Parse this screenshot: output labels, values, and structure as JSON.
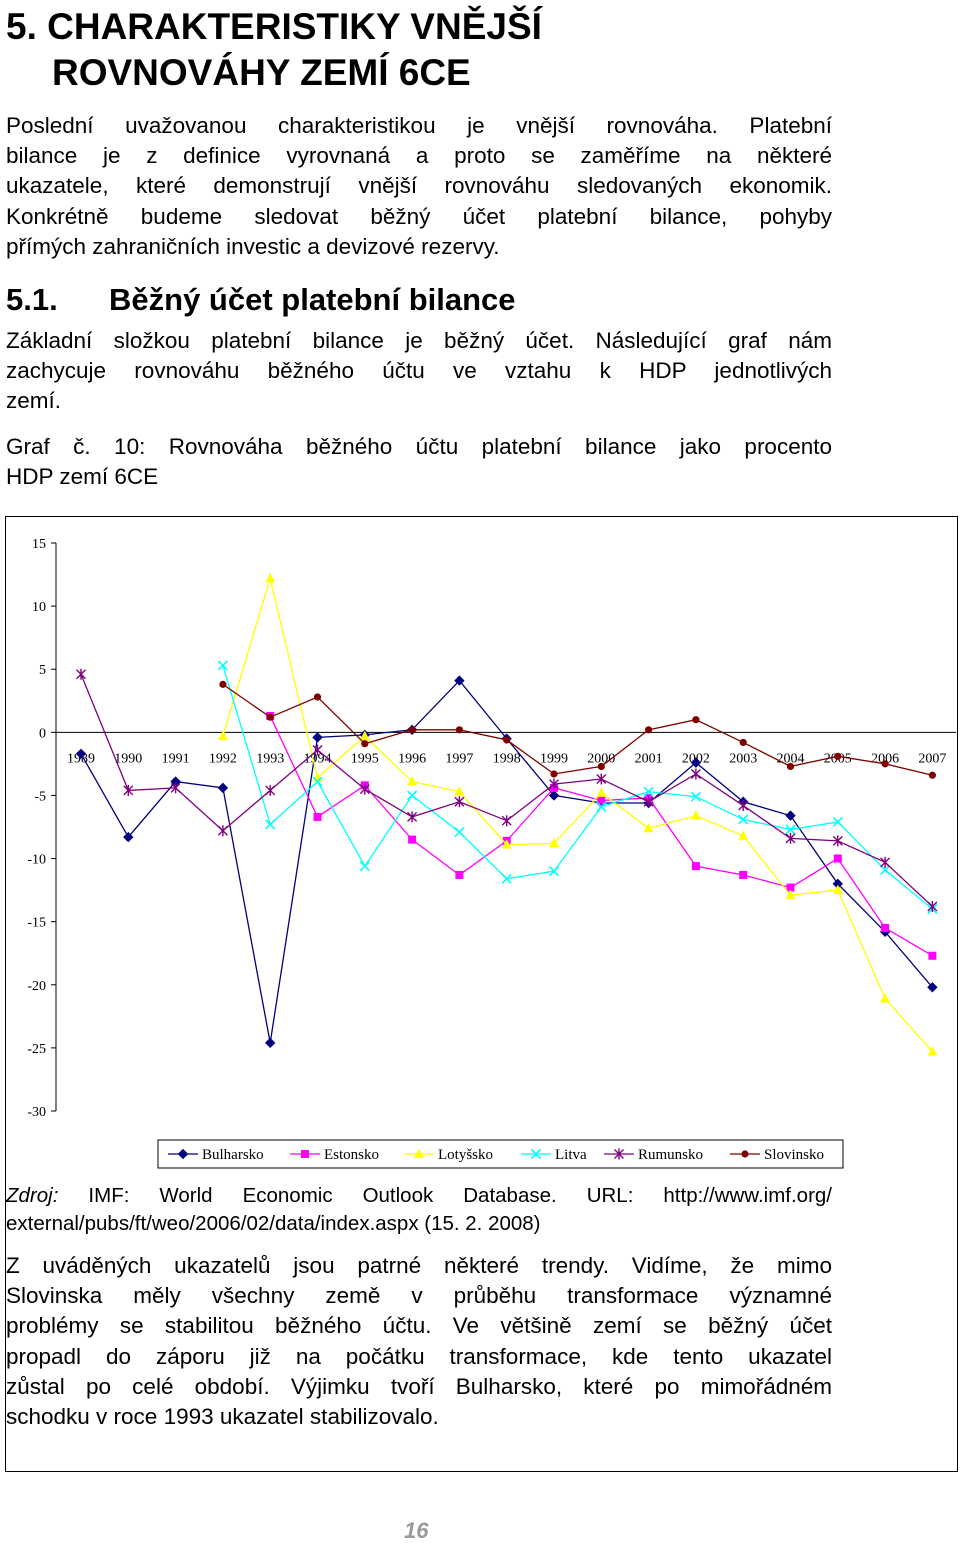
{
  "heading": {
    "line1": "5. CHARAKTERISTIKY VNĚJŠÍ",
    "line2": "ROVNOVÁHY ZEMÍ 6CE"
  },
  "intro_lines": [
    "Poslední uvažovanou charakteristikou je vnější rovnováha. Platební",
    "bilance je z definice vyrovnaná a proto se zaměříme na některé",
    "ukazatele, které demonstrují vnější rovnováhu sledovaných ekonomik.",
    "Konkrétně budeme sledovat běžný účet platební bilance, pohyby",
    "přímých zahraničních investic a devizové rezervy."
  ],
  "section": {
    "number": "5.1.",
    "title": "Běžný účet platební bilance"
  },
  "section_lines": [
    "Základní složkou platební bilance je běžný účet. Následující graf nám",
    "zachycuje rovnováhu běžného účtu ve vztahu k HDP jednotlivých",
    "zemí."
  ],
  "caption_lines": [
    "Graf č. 10: Rovnováha běžného účtu platební bilance jako procento",
    "HDP zemí 6CE"
  ],
  "source_lines": [
    "Zdroj: IMF: World Economic Outlook Database. URL: http://www.imf.org/",
    "external/pubs/ft/weo/2006/02/data/index.aspx (15. 2. 2008)"
  ],
  "conclusion_lines": [
    "Z uváděných ukazatelů jsou patrné některé trendy. Vidíme, že mimo",
    "Slovinska měly všechny země v průběhu transformace významné",
    "problémy se stabilitou běžného účtu. Ve většině zemí se běžný účet",
    "propadl do záporu již na počátku transformace, kde tento ukazatel",
    "zůstal po celé období. Výjimku tvoří Bulharsko, které po mimořádném",
    "schodku v roce 1993 ukazatel stabilizovalo."
  ],
  "page_number": "16",
  "chart_data": {
    "type": "line",
    "title": "",
    "xlabel": "",
    "ylabel": "",
    "ylim": [
      -30,
      15
    ],
    "yticks": [
      15,
      10,
      5,
      0,
      -5,
      -10,
      -15,
      -20,
      -25,
      -30
    ],
    "categories": [
      "1989",
      "1990",
      "1991",
      "1992",
      "1993",
      "1994",
      "1995",
      "1996",
      "1997",
      "1998",
      "1999",
      "2000",
      "2001",
      "2002",
      "2003",
      "2004",
      "2005",
      "2006",
      "2007"
    ],
    "grid": false,
    "legend_position": "bottom",
    "series": [
      {
        "name": "Bulharsko",
        "color": "#000080",
        "marker": "diamond",
        "values": [
          -1.7,
          -8.3,
          -3.9,
          -4.4,
          -24.6,
          -0.4,
          -0.2,
          0.2,
          4.1,
          -0.5,
          -5.0,
          -5.6,
          -5.6,
          -2.4,
          -5.5,
          -6.6,
          -12.0,
          -15.8,
          -20.2
        ]
      },
      {
        "name": "Estonsko",
        "color": "#FF00FF",
        "marker": "square",
        "values": [
          null,
          null,
          null,
          null,
          1.3,
          -6.7,
          -4.2,
          -8.5,
          -11.3,
          -8.6,
          -4.4,
          -5.4,
          -5.2,
          -10.6,
          -11.3,
          -12.3,
          -10.0,
          -15.5,
          -17.7
        ]
      },
      {
        "name": "Lotyšsko",
        "color": "#FFFF00",
        "marker": "triangle",
        "values": [
          null,
          null,
          null,
          -0.3,
          12.2,
          -3.6,
          -0.3,
          -3.9,
          -4.7,
          -8.9,
          -8.8,
          -4.8,
          -7.6,
          -6.6,
          -8.2,
          -12.9,
          -12.5,
          -21.1,
          -25.3
        ]
      },
      {
        "name": "Litva",
        "color": "#00FFFF",
        "marker": "x",
        "values": [
          null,
          null,
          null,
          5.3,
          -7.3,
          -3.9,
          -10.6,
          -5.0,
          -7.9,
          -11.6,
          -11.0,
          -5.9,
          -4.7,
          -5.1,
          -6.9,
          -7.7,
          -7.1,
          -10.9,
          -14.0
        ]
      },
      {
        "name": "Rumunsko",
        "color": "#800080",
        "marker": "star",
        "values": [
          4.6,
          -4.6,
          -4.4,
          -7.8,
          -4.6,
          -1.4,
          -4.5,
          -6.7,
          -5.5,
          -7.0,
          -4.1,
          -3.7,
          -5.5,
          -3.3,
          -5.8,
          -8.4,
          -8.6,
          -10.3,
          -13.8
        ]
      },
      {
        "name": "Slovinsko",
        "color": "#800000",
        "marker": "circle",
        "values": [
          null,
          null,
          null,
          3.8,
          1.2,
          2.8,
          -0.9,
          0.2,
          0.2,
          -0.6,
          -3.3,
          -2.7,
          0.2,
          1.0,
          -0.8,
          -2.7,
          -1.9,
          -2.5,
          -3.4
        ]
      }
    ]
  }
}
